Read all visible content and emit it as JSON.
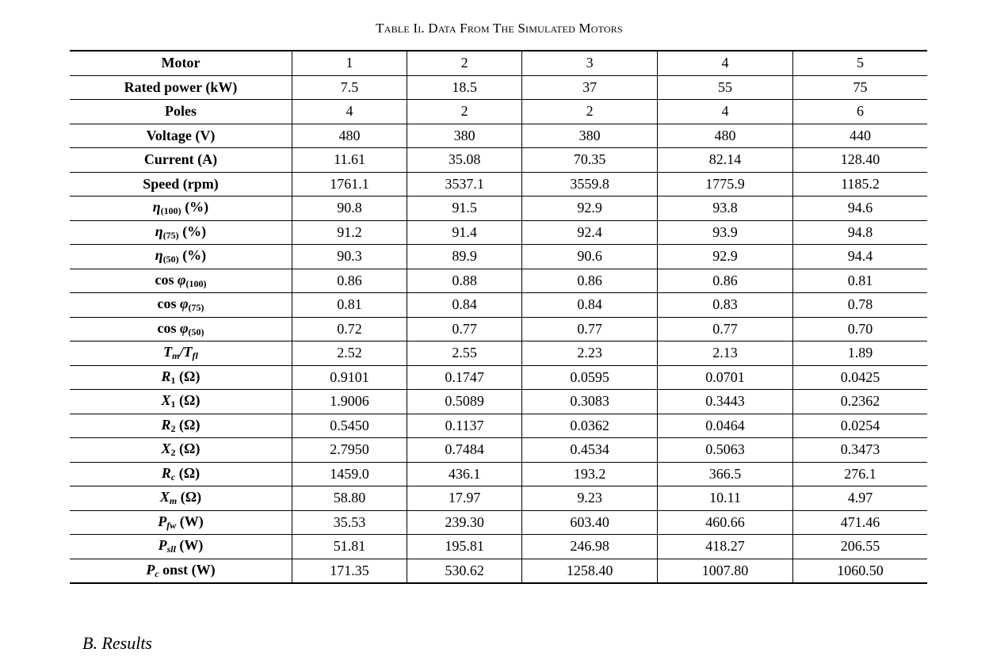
{
  "caption": "TABLE II. DATA FROM THE SIMULATED MOTORS",
  "table": {
    "rows": [
      {
        "label": "Motor",
        "values": [
          "1",
          "2",
          "3",
          "4",
          "5"
        ]
      },
      {
        "label": "Rated power (kW)",
        "values": [
          "7.5",
          "18.5",
          "37",
          "55",
          "75"
        ]
      },
      {
        "label": "Poles",
        "values": [
          "4",
          "2",
          "2",
          "4",
          "6"
        ]
      },
      {
        "label": "Voltage (V)",
        "values": [
          "480",
          "380",
          "380",
          "480",
          "440"
        ]
      },
      {
        "label": "Current (A)",
        "values": [
          "11.61",
          "35.08",
          "70.35",
          "82.14",
          "128.40"
        ]
      },
      {
        "label": "Speed (rpm)",
        "values": [
          "1761.1",
          "3537.1",
          "3559.8",
          "1775.9",
          "1185.2"
        ]
      },
      {
        "label": "η(100) (%)",
        "values": [
          "90.8",
          "91.5",
          "92.9",
          "93.8",
          "94.6"
        ]
      },
      {
        "label": "η(75) (%)",
        "values": [
          "91.2",
          "91.4",
          "92.4",
          "93.9",
          "94.8"
        ]
      },
      {
        "label": "η(50) (%)",
        "values": [
          "90.3",
          "89.9",
          "90.6",
          "92.9",
          "94.4"
        ]
      },
      {
        "label": "cos φ(100)",
        "values": [
          "0.86",
          "0.88",
          "0.86",
          "0.86",
          "0.81"
        ]
      },
      {
        "label": "cos φ(75)",
        "values": [
          "0.81",
          "0.84",
          "0.84",
          "0.83",
          "0.78"
        ]
      },
      {
        "label": "cos φ(50)",
        "values": [
          "0.72",
          "0.77",
          "0.77",
          "0.77",
          "0.70"
        ]
      },
      {
        "label": "Tm/Tfl",
        "values": [
          "2.52",
          "2.55",
          "2.23",
          "2.13",
          "1.89"
        ]
      },
      {
        "label": "R1 (Ω)",
        "values": [
          "0.9101",
          "0.1747",
          "0.0595",
          "0.0701",
          "0.0425"
        ]
      },
      {
        "label": "X1 (Ω)",
        "values": [
          "1.9006",
          "0.5089",
          "0.3083",
          "0.3443",
          "0.2362"
        ]
      },
      {
        "label": "R2 (Ω)",
        "values": [
          "0.5450",
          "0.1137",
          "0.0362",
          "0.0464",
          "0.0254"
        ]
      },
      {
        "label": "X2 (Ω)",
        "values": [
          "2.7950",
          "0.7484",
          "0.4534",
          "0.5063",
          "0.3473"
        ]
      },
      {
        "label": "Rc (Ω)",
        "values": [
          "1459.0",
          "436.1",
          "193.2",
          "366.5",
          "276.1"
        ]
      },
      {
        "label": "Xm (Ω)",
        "values": [
          "58.80",
          "17.97",
          "9.23",
          "10.11",
          "4.97"
        ]
      },
      {
        "label": "Pfw (W)",
        "values": [
          "35.53",
          "239.30",
          "603.40",
          "460.66",
          "471.46"
        ]
      },
      {
        "label": "Psll (W)",
        "values": [
          "51.81",
          "195.81",
          "246.98",
          "418.27",
          "206.55"
        ]
      },
      {
        "label": "Pconst (W)",
        "values": [
          "171.35",
          "530.62",
          "1258.40",
          "1007.80",
          "1060.50"
        ]
      }
    ]
  },
  "section_heading": "B.   Results"
}
